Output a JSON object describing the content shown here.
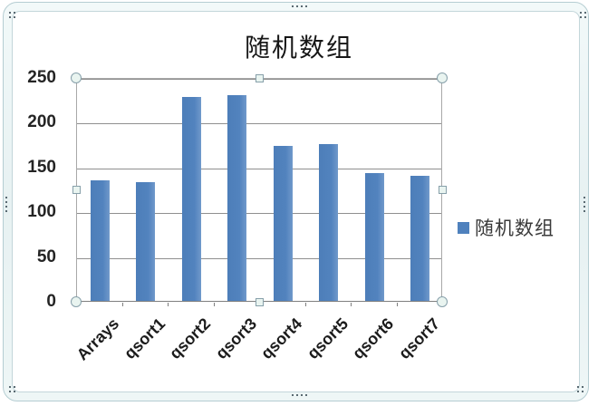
{
  "chart_data": {
    "type": "bar",
    "title": "随机数组",
    "categories": [
      "Arrays",
      "qsort1",
      "qsort2",
      "qsort3",
      "qsort4",
      "qsort5",
      "qsort6",
      "qsort7"
    ],
    "series": [
      {
        "name": "随机数组",
        "values": [
          135,
          133,
          228,
          230,
          173,
          175,
          143,
          140
        ]
      }
    ],
    "ylabel": "",
    "xlabel": "",
    "ylim": [
      0,
      250
    ],
    "yticks": [
      0,
      50,
      100,
      150,
      200,
      250
    ],
    "grid": true,
    "legend_position": "right",
    "bar_color": "#4f81bd"
  },
  "legend": {
    "label": "随机数组"
  },
  "colors": {
    "bar": "#4f81bd",
    "gridline": "#8f8f8f",
    "axis": "#7f7f7f",
    "frame_band": "#eaf3f4",
    "frame_line": "#b5cdd2",
    "handle_fill": "#e9f4f0",
    "handle_border": "#87a0aa",
    "text": "#1c1c1c"
  },
  "selection": {
    "state": "chart-selected",
    "plot_handles": [
      "top-left",
      "top-mid",
      "top-right",
      "mid-left",
      "mid-right",
      "bottom-left",
      "bottom-mid",
      "bottom-right"
    ]
  }
}
